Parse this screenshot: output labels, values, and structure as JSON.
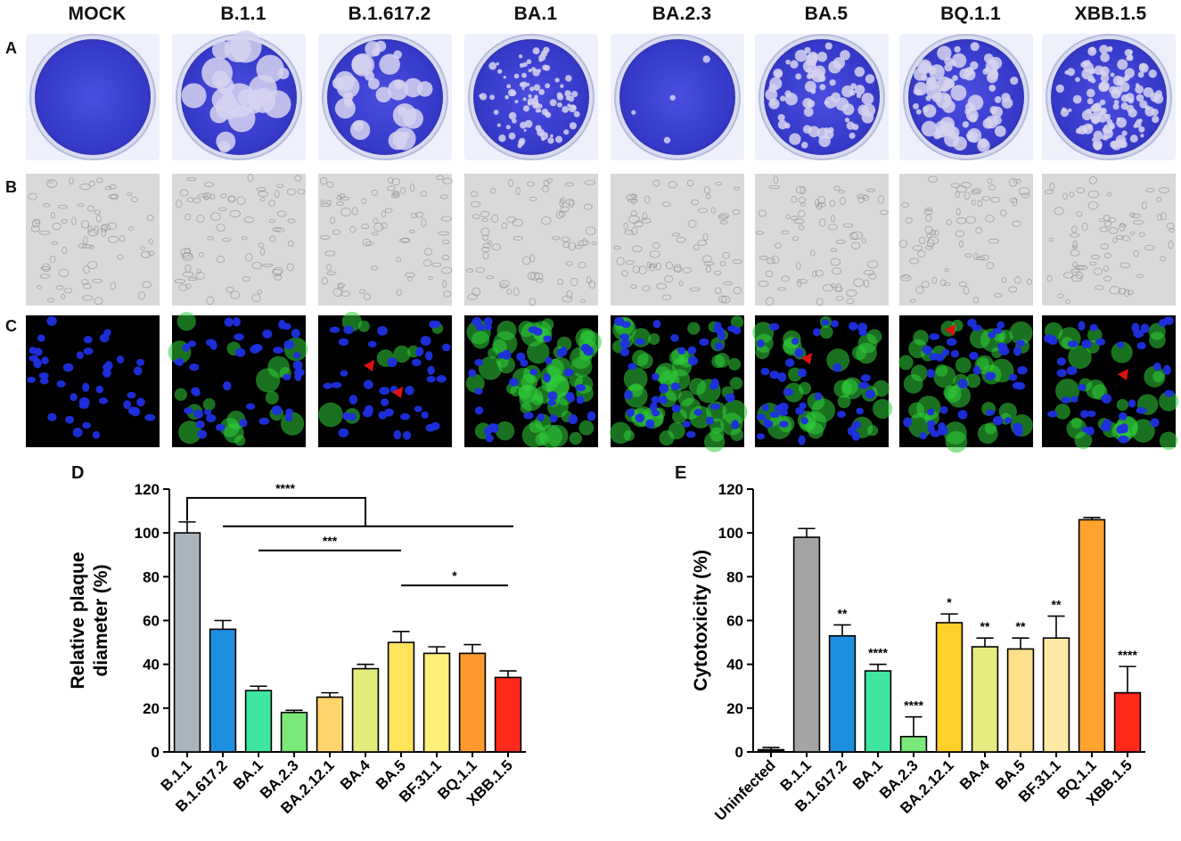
{
  "panel_letters": [
    "A",
    "B",
    "C",
    "D",
    "E"
  ],
  "column_headers": [
    "MOCK",
    "B.1.1",
    "B.1.617.2",
    "BA.1",
    "BA.2.3",
    "BA.5",
    "BQ.1.1",
    "XBB.1.5"
  ],
  "colors": {
    "plaque_stain": "#3b3fd0",
    "dapi_blue": "#1f2fe0",
    "spike_green": "#35e03a",
    "arrowhead_red": "#e01010"
  },
  "chart_data": [
    {
      "type": "bar",
      "panel": "D",
      "ylabel": "Relative plaque diameter (%)",
      "ylim": [
        0,
        120
      ],
      "yticks": [
        0,
        20,
        40,
        60,
        80,
        100,
        120
      ],
      "categories": [
        "B.1.1",
        "B.1.617.2",
        "BA.1",
        "BA.2.3",
        "BA.2.12.1",
        "BA.4",
        "BA.5",
        "BF.31.1",
        "BQ.1.1",
        "XBB.1.5"
      ],
      "values": [
        100,
        56,
        28,
        18,
        25,
        38,
        50,
        45,
        45,
        34
      ],
      "errors": [
        5,
        4,
        2,
        1,
        2,
        2,
        5,
        3,
        4,
        3
      ],
      "bar_colors": [
        "#a9b5bd",
        "#1e8fe0",
        "#3ee6a0",
        "#7be87a",
        "#ffd46a",
        "#e2ec7a",
        "#ffe45c",
        "#fff07a",
        "#ff9a2e",
        "#ff2a1a"
      ],
      "grid": false,
      "annotations": [
        {
          "text": "****",
          "from": "B.1.1",
          "to": "B.1.617.2-XBB.1.5"
        },
        {
          "text": "***",
          "from": "BA.1",
          "to": "BA.5"
        },
        {
          "text": "*",
          "from": "BA.5",
          "to": "XBB.1.5"
        }
      ]
    },
    {
      "type": "bar",
      "panel": "E",
      "ylabel": "Cytotoxicity (%)",
      "ylim": [
        0,
        120
      ],
      "yticks": [
        0,
        20,
        40,
        60,
        80,
        100,
        120
      ],
      "categories": [
        "Uninfected",
        "B.1.1",
        "B.1.617.2",
        "BA.1",
        "BA.2.3",
        "BA.2.12.1",
        "BA.4",
        "BA.5",
        "BF.31.1",
        "BQ.1.1",
        "XBB.1.5"
      ],
      "values": [
        1,
        98,
        53,
        37,
        7,
        59,
        48,
        47,
        52,
        106,
        27
      ],
      "errors": [
        1,
        4,
        5,
        3,
        9,
        4,
        4,
        5,
        10,
        1,
        12
      ],
      "bar_colors": [
        "#111111",
        "#a4a4a4",
        "#1e8fe0",
        "#3ee6a0",
        "#7be87a",
        "#ffd02a",
        "#e6ec80",
        "#ffe08a",
        "#ffe9a6",
        "#ffa22e",
        "#ff2a1a"
      ],
      "significance": [
        "",
        "",
        "**",
        "****",
        "****",
        "*",
        "**",
        "**",
        "**",
        "",
        "****"
      ],
      "grid": false
    }
  ]
}
